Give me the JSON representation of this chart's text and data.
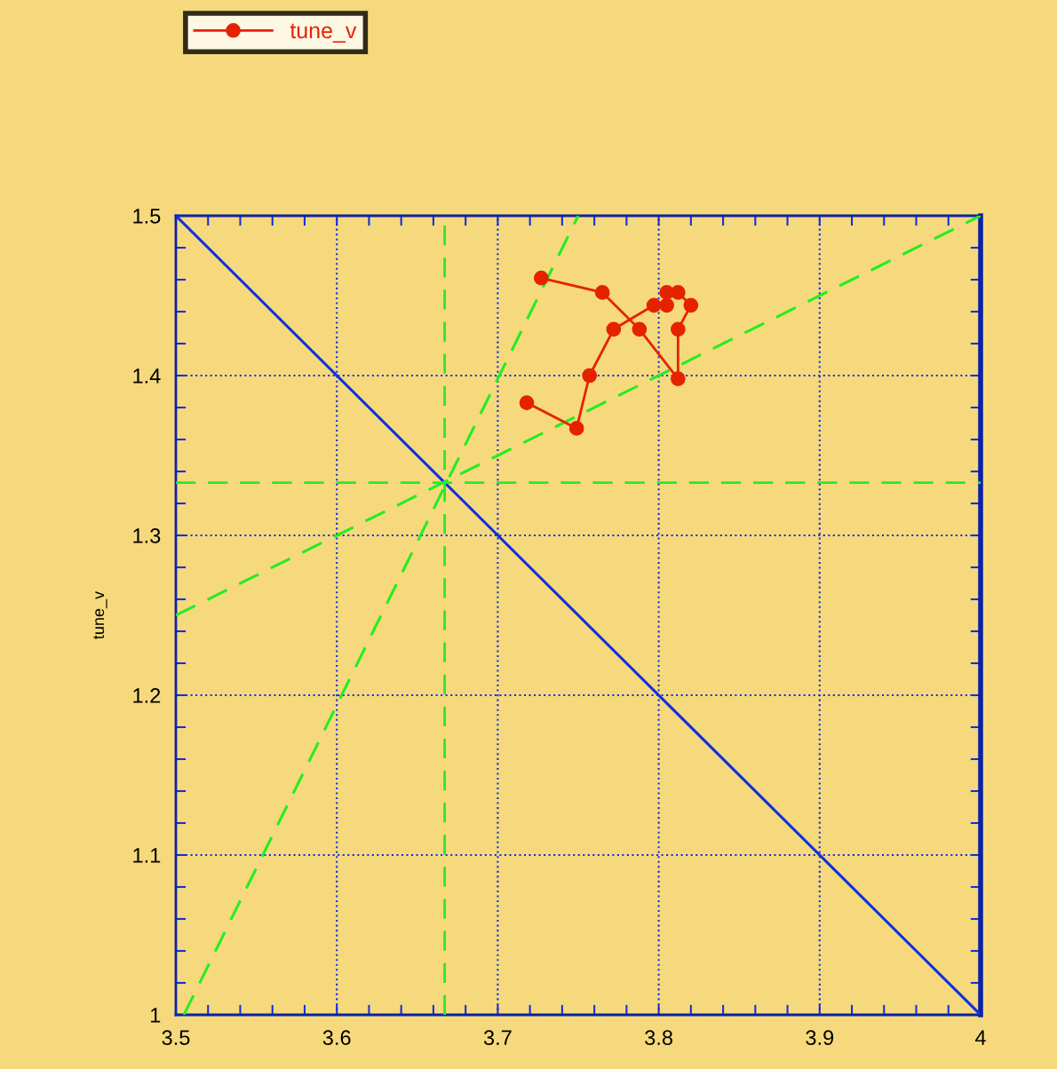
{
  "chart_data": {
    "type": "line",
    "ylabel": "tune_v",
    "xlim": [
      3.5,
      4.0
    ],
    "ylim": [
      1.0,
      1.5
    ],
    "xticks": [
      3.5,
      {
        "value": 3.52,
        "label": null
      },
      {
        "value": 3.54,
        "label": null
      },
      {
        "value": 3.56,
        "label": null
      },
      {
        "value": 3.58,
        "label": null
      },
      3.6,
      {
        "value": 3.62,
        "label": null
      },
      {
        "value": 3.64,
        "label": null
      },
      {
        "value": 3.66,
        "label": null
      },
      {
        "value": 3.68,
        "label": null
      },
      3.7,
      {
        "value": 3.72,
        "label": null
      },
      {
        "value": 3.74,
        "label": null
      },
      {
        "value": 3.76,
        "label": null
      },
      {
        "value": 3.78,
        "label": null
      },
      3.8,
      {
        "value": 3.82,
        "label": null
      },
      {
        "value": 3.84,
        "label": null
      },
      {
        "value": 3.86,
        "label": null
      },
      {
        "value": 3.88,
        "label": null
      },
      3.9,
      {
        "value": 3.92,
        "label": null
      },
      {
        "value": 3.94,
        "label": null
      },
      {
        "value": 3.96,
        "label": null
      },
      {
        "value": 3.98,
        "label": null
      },
      4
    ],
    "yticks": [
      1,
      {
        "value": 1.02,
        "label": null
      },
      {
        "value": 1.04,
        "label": null
      },
      {
        "value": 1.06,
        "label": null
      },
      {
        "value": 1.08,
        "label": null
      },
      1.1,
      {
        "value": 1.12,
        "label": null
      },
      {
        "value": 1.14,
        "label": null
      },
      {
        "value": 1.16,
        "label": null
      },
      {
        "value": 1.18,
        "label": null
      },
      1.2,
      {
        "value": 1.22,
        "label": null
      },
      {
        "value": 1.24,
        "label": null
      },
      {
        "value": 1.26,
        "label": null
      },
      {
        "value": 1.28,
        "label": null
      },
      1.3,
      {
        "value": 1.32,
        "label": null
      },
      {
        "value": 1.34,
        "label": null
      },
      {
        "value": 1.36,
        "label": null
      },
      {
        "value": 1.38,
        "label": null
      },
      1.4,
      {
        "value": 1.42,
        "label": null
      },
      {
        "value": 1.44,
        "label": null
      },
      {
        "value": 1.46,
        "label": null
      },
      {
        "value": 1.48,
        "label": null
      },
      1.5
    ],
    "grid": true,
    "legend": "top left",
    "series": [
      {
        "name": "tune_v",
        "color": "#e52200",
        "marker": "circle",
        "line_style": "solid",
        "x": [
          3.718,
          3.749,
          3.757,
          3.772,
          3.797,
          3.805,
          3.805,
          3.812,
          3.82,
          3.812,
          3.812,
          3.788,
          3.765,
          3.727
        ],
        "values": [
          1.383,
          1.367,
          1.4,
          1.429,
          1.444,
          1.444,
          1.452,
          1.452,
          1.444,
          1.429,
          1.398,
          1.429,
          1.452,
          1.461
        ]
      },
      {
        "color": "#1030e0",
        "marker": "none",
        "line_style": "solid",
        "x": [
          3.5,
          4.0
        ],
        "values": [
          1.5,
          1.0
        ]
      },
      {
        "color": "#22ee22",
        "marker": "none",
        "line_style": "dashed",
        "x": [
          3.5,
          4.0
        ],
        "values": [
          1.25,
          1.5
        ]
      },
      {
        "color": "#22ee22",
        "marker": "none",
        "line_style": "dashed",
        "x": [
          3.505,
          3.75
        ],
        "values": [
          1.0,
          1.5
        ]
      }
    ],
    "ref_lines": [
      {
        "axis": "x",
        "value": 3.667,
        "color": "#22ee22",
        "line_style": "dashed"
      },
      {
        "axis": "y",
        "value": 1.333,
        "color": "#22ee22",
        "line_style": "dashed"
      }
    ]
  }
}
